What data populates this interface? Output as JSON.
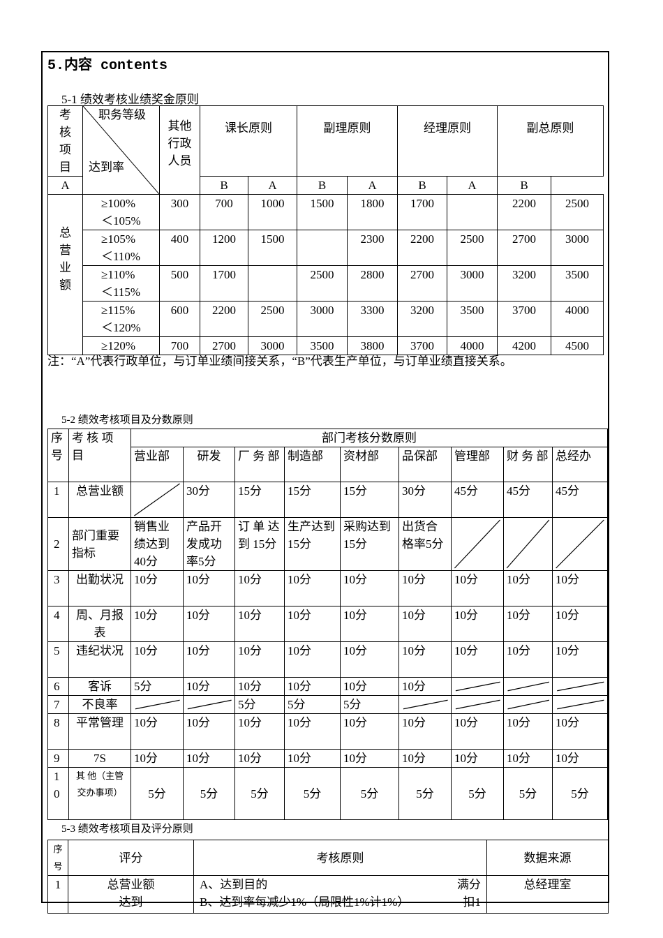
{
  "heading": "5.内容 contents",
  "section1": {
    "title": "5-1 绩效考核业绩奖金原则",
    "corner_header": "考核项目",
    "diag_top": "职务等级",
    "diag_bottom": "达到率",
    "other_staff": "其他行政人员",
    "groups": [
      "课长原则",
      "副理原则",
      "经理原则",
      "副总原则"
    ],
    "sub": [
      "A",
      "B",
      "A",
      "B",
      "A",
      "B",
      "A",
      "B"
    ],
    "row_label": "总营业额",
    "rows": [
      {
        "rate": [
          "≥100%",
          "＜105%"
        ],
        "values": [
          "300",
          "700",
          "1000",
          "1500",
          "1800",
          "1700",
          "",
          "2200",
          "2500"
        ]
      },
      {
        "rate": [
          "≥105%",
          "＜110%"
        ],
        "values": [
          "400",
          "1200",
          "1500",
          "",
          "2300",
          "2200",
          "2500",
          "2700",
          "3000"
        ]
      },
      {
        "rate": [
          "≥110%",
          "＜115%"
        ],
        "values": [
          "500",
          "1700",
          "",
          "2500",
          "2800",
          "2700",
          "3000",
          "3200",
          "3500"
        ]
      },
      {
        "rate": [
          "≥115%",
          "＜120%"
        ],
        "values": [
          "600",
          "2200",
          "2500",
          "3000",
          "3300",
          "3200",
          "3500",
          "3700",
          "4000"
        ]
      },
      {
        "rate": [
          "≥120%"
        ],
        "values": [
          "700",
          "2700",
          "3000",
          "3500",
          "3800",
          "3700",
          "4000",
          "4200",
          "4500"
        ]
      }
    ],
    "note": "注：“A”代表行政单位，与订单业绩间接关系，“B”代表生产单位，与订单业绩直接关系。"
  },
  "section2": {
    "title": "5-2 绩效考核项目及分数原则",
    "seq_header": "序号",
    "item_header": "考 核 项 目",
    "group_header": "部门考核分数原则",
    "departments": [
      "营业部",
      "研发",
      "厂 务 部",
      "制造部",
      "资材部",
      "品保部",
      "管理部",
      "财 务 部",
      "总经办"
    ],
    "rows": [
      {
        "seq": "1",
        "item": "总营业额",
        "values": [
          "/",
          "30分",
          "15分",
          "15分",
          "15分",
          "30分",
          "45分",
          "45分",
          "45分"
        ]
      },
      {
        "seq": "2",
        "item": "部门重要指标",
        "values": [
          "销售业绩达到40分",
          "产品开发成功率5分",
          "订 单 达 到 15分",
          "生产达到 15分",
          "采购达到 15分",
          "出货合格率5分",
          "/",
          "/",
          "/"
        ]
      },
      {
        "seq": "3",
        "item": "出勤状况",
        "values": [
          "10分",
          "10分",
          "10分",
          "10分",
          "10分",
          "10分",
          "10分",
          "10分",
          "10分"
        ]
      },
      {
        "seq": "4",
        "item": "周、月报表",
        "values": [
          "10分",
          "10分",
          "10分",
          "10分",
          "10分",
          "10分",
          "10分",
          "10分",
          "10分"
        ]
      },
      {
        "seq": "5",
        "item": "违纪状况",
        "values": [
          "10分",
          "10分",
          "10分",
          "10分",
          "10分",
          "10分",
          "10分",
          "10分",
          "10分"
        ]
      },
      {
        "seq": "6",
        "item": "客诉",
        "values": [
          "5分",
          "10分",
          "10分",
          "10分",
          "10分",
          "10分",
          "/",
          "/",
          "/"
        ]
      },
      {
        "seq": "7",
        "item": "不良率",
        "values": [
          "/",
          "/",
          "5分",
          "5分",
          "5分",
          "/",
          "/",
          "/",
          "/"
        ]
      },
      {
        "seq": "8",
        "item": "平常管理",
        "values": [
          "10分",
          "10分",
          "10分",
          "10分",
          "10分",
          "10分",
          "10分",
          "10分",
          "10分"
        ]
      },
      {
        "seq": "9",
        "item": "7S",
        "values": [
          "10分",
          "10分",
          "10分",
          "10分",
          "10分",
          "10分",
          "10分",
          "10分",
          "10分"
        ]
      },
      {
        "seq": "10",
        "item": "其 他（主管交办事项）",
        "values": [
          "5分",
          "5分",
          "5分",
          "5分",
          "5分",
          "5分",
          "5分",
          "5分",
          "5分"
        ]
      }
    ]
  },
  "section3": {
    "title": "5-3 绩效考核项目及评分原则",
    "headers": [
      "序号",
      "评分",
      "考核原则",
      "数据来源"
    ],
    "rows": [
      {
        "seq": "1",
        "score": "总营业额达到",
        "rules": [
          {
            "text": "A、达到目的",
            "points": "满分"
          },
          {
            "text": "B、达到率每减少1%（局限性1%计1%）",
            "points": "扣1"
          }
        ],
        "source": "总经理室"
      }
    ]
  }
}
